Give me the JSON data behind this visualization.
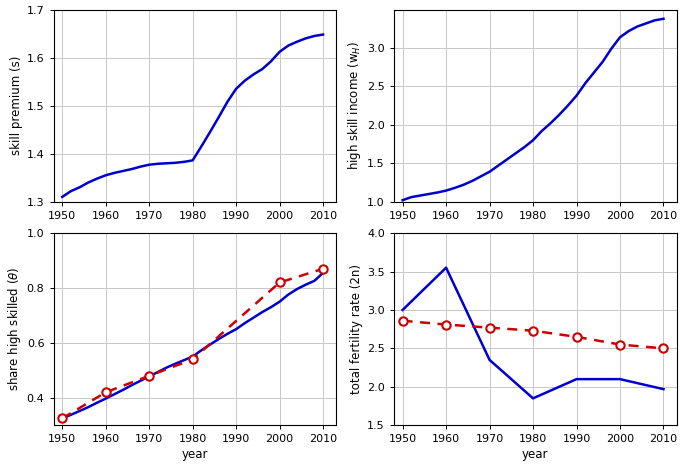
{
  "years_dense": [
    1950,
    1952,
    1954,
    1956,
    1958,
    1960,
    1962,
    1964,
    1966,
    1968,
    1970,
    1972,
    1974,
    1976,
    1978,
    1980,
    1982,
    1984,
    1986,
    1988,
    1990,
    1992,
    1994,
    1996,
    1998,
    2000,
    2002,
    2004,
    2006,
    2008,
    2010
  ],
  "skill_premium": [
    1.31,
    1.322,
    1.33,
    1.34,
    1.348,
    1.355,
    1.36,
    1.364,
    1.368,
    1.373,
    1.377,
    1.379,
    1.38,
    1.381,
    1.383,
    1.386,
    1.415,
    1.445,
    1.476,
    1.508,
    1.535,
    1.552,
    1.565,
    1.576,
    1.592,
    1.612,
    1.625,
    1.633,
    1.64,
    1.645,
    1.648
  ],
  "high_skill_income": [
    1.02,
    1.06,
    1.08,
    1.1,
    1.12,
    1.145,
    1.18,
    1.22,
    1.27,
    1.33,
    1.39,
    1.47,
    1.55,
    1.63,
    1.71,
    1.8,
    1.92,
    2.02,
    2.13,
    2.25,
    2.38,
    2.54,
    2.68,
    2.82,
    2.99,
    3.14,
    3.22,
    3.28,
    3.32,
    3.36,
    3.38
  ],
  "share_hs_blue_x": [
    1950,
    1952,
    1954,
    1956,
    1958,
    1960,
    1962,
    1964,
    1966,
    1968,
    1970,
    1972,
    1974,
    1976,
    1978,
    1980,
    1982,
    1984,
    1986,
    1988,
    1990,
    1992,
    1994,
    1996,
    1998,
    2000,
    2002,
    2004,
    2006,
    2008,
    2010
  ],
  "share_hs_blue_y": [
    0.325,
    0.338,
    0.352,
    0.366,
    0.382,
    0.397,
    0.413,
    0.429,
    0.446,
    0.462,
    0.478,
    0.494,
    0.51,
    0.524,
    0.537,
    0.55,
    0.573,
    0.594,
    0.614,
    0.633,
    0.65,
    0.672,
    0.692,
    0.712,
    0.73,
    0.75,
    0.776,
    0.796,
    0.812,
    0.826,
    0.855
  ],
  "share_hs_red_x": [
    1950,
    1960,
    1970,
    1980,
    2000,
    2010
  ],
  "share_hs_red_y": [
    0.325,
    0.42,
    0.48,
    0.54,
    0.82,
    0.87
  ],
  "fertility_blue_x": [
    1950,
    1960,
    1970,
    1980,
    1990,
    2000,
    2010
  ],
  "fertility_blue_y": [
    3.0,
    3.55,
    2.35,
    1.85,
    2.1,
    2.1,
    1.97
  ],
  "fertility_red_x": [
    1950,
    1960,
    1970,
    1980,
    1990,
    2000,
    2010
  ],
  "fertility_red_y": [
    2.86,
    2.81,
    2.77,
    2.73,
    2.65,
    2.55,
    2.5
  ],
  "line_color": "#0000CC",
  "red_color": "#CC0000",
  "grid_color": "#C8C8C8",
  "xlabel": "year",
  "ylabel_tl": "skill premium (s)",
  "ylabel_tr": "high skill income (w$_H$)",
  "ylabel_bl": "share high skilled ($\\theta$)",
  "ylabel_br": "total fertility rate (2n)",
  "xlim": [
    1948,
    2013
  ],
  "xticks": [
    1950,
    1960,
    1970,
    1980,
    1990,
    2000,
    2010
  ],
  "tl_ylim": [
    1.3,
    1.7
  ],
  "tl_yticks": [
    1.3,
    1.4,
    1.5,
    1.6,
    1.7
  ],
  "tr_ylim": [
    1.0,
    3.5
  ],
  "tr_yticks": [
    1.0,
    1.5,
    2.0,
    2.5,
    3.0
  ],
  "bl_ylim": [
    0.3,
    1.0
  ],
  "bl_yticks": [
    0.4,
    0.6,
    0.8,
    1.0
  ],
  "br_ylim": [
    1.5,
    4.0
  ],
  "br_yticks": [
    1.5,
    2.0,
    2.5,
    3.0,
    3.5,
    4.0
  ]
}
